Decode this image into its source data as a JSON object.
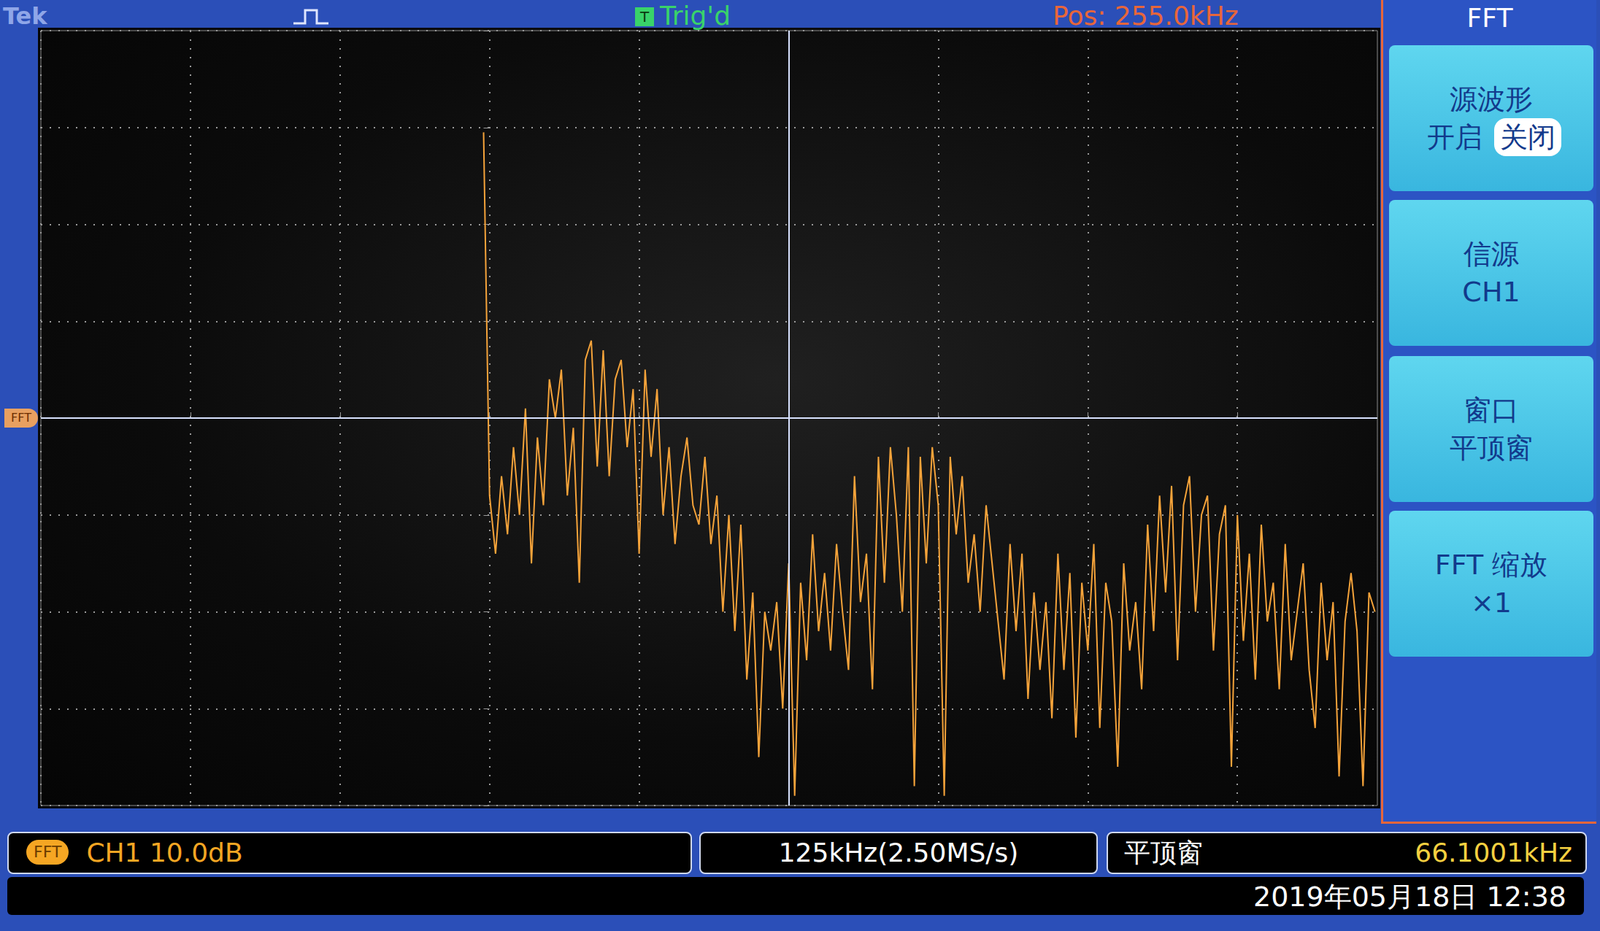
{
  "chart_data": {
    "type": "line",
    "x": [
      0,
      5,
      10,
      15,
      20,
      25,
      30,
      35,
      40,
      45,
      50,
      55,
      60,
      65,
      70,
      75,
      80,
      85,
      90,
      95,
      100,
      105,
      110,
      115,
      120,
      125,
      130,
      135,
      140,
      145,
      150,
      155,
      160,
      165,
      170,
      175,
      180,
      185,
      190,
      195,
      200,
      205,
      210,
      215,
      220,
      225,
      230,
      235,
      240,
      245,
      250,
      255,
      260,
      265,
      270,
      275,
      280,
      285,
      290,
      295,
      300,
      305,
      310,
      315,
      320,
      325,
      330,
      335,
      340,
      345,
      350,
      355,
      360,
      365,
      370,
      375,
      380,
      385,
      390,
      395,
      400,
      405,
      410,
      415,
      420,
      425,
      430,
      435,
      440,
      445,
      450,
      455,
      460,
      465,
      470,
      475,
      480,
      485,
      490,
      495,
      500,
      505,
      510,
      515,
      520,
      525,
      530,
      535,
      540,
      545,
      550,
      555,
      560,
      565,
      570,
      575,
      580,
      585,
      590,
      595,
      600,
      605,
      610,
      615,
      620,
      625,
      630,
      635,
      640,
      645,
      650,
      655,
      660,
      665,
      670,
      675,
      680,
      685,
      690,
      695,
      700,
      705,
      710,
      715,
      720,
      725,
      730,
      735,
      740,
      745
    ],
    "values": [
      29.5,
      -8,
      -14,
      -6,
      -12,
      -3,
      -10,
      1,
      -15,
      -2,
      -9,
      4,
      0,
      5,
      -8,
      -1,
      -17,
      6,
      8,
      -5,
      7,
      -6,
      4,
      6,
      -3,
      3,
      -14,
      5,
      -4,
      3,
      -10,
      -3,
      -13,
      -6,
      -2,
      -9,
      -11,
      -4,
      -13,
      -8,
      -20,
      -10,
      -22,
      -11,
      -27,
      -18,
      -35,
      -20,
      -24,
      -19,
      -30,
      -15,
      -39,
      -17,
      -25,
      -12,
      -22,
      -16,
      -24,
      -13,
      -20,
      -26,
      -6,
      -19,
      -14,
      -28,
      -4,
      -17,
      -3,
      -10,
      -20,
      -3,
      -38,
      -4,
      -15,
      -3,
      -9,
      -39,
      -4,
      -12,
      -6,
      -17,
      -12,
      -20,
      -9,
      -15,
      -21,
      -27,
      -13,
      -22,
      -14,
      -29,
      -18,
      -26,
      -19,
      -31,
      -14,
      -26,
      -16,
      -33,
      -17,
      -24,
      -13,
      -32,
      -17,
      -21,
      -36,
      -15,
      -24,
      -19,
      -28,
      -11,
      -22,
      -8,
      -18,
      -7,
      -25,
      -9,
      -6,
      -20,
      -10,
      -8,
      -24,
      -12,
      -9,
      -36,
      -10,
      -23,
      -14,
      -27,
      -11,
      -21,
      -17,
      -28,
      -13,
      -25,
      -20,
      -15,
      -26,
      -32,
      -17,
      -25,
      -19,
      -37,
      -21,
      -16,
      -22,
      -38,
      -18,
      -20
    ],
    "color": "#f5a33a",
    "xlim": [
      -370,
      747
    ],
    "xticks": [
      -370,
      -245,
      -120,
      5,
      130,
      255,
      380,
      505,
      630
    ],
    "ylim": [
      -40,
      40
    ],
    "yticks": [
      -40,
      -30,
      -20,
      -10,
      0,
      10,
      20,
      30,
      40
    ],
    "grid": true,
    "tick_labels": false,
    "annotations": [
      {
        "text": "Pos: 255.0kHz",
        "x": 255
      },
      {
        "text": "FFT",
        "y": 0
      }
    ]
  },
  "screen": {
    "brand": "Tek",
    "trigger": {
      "icon": "T",
      "status": "Trig'd"
    },
    "menu": {
      "title": "FFT",
      "buttons": [
        {
          "lines": [
            "源波形"
          ],
          "options": [
            "开启",
            "关闭"
          ],
          "selected": 1
        },
        {
          "lines": [
            "信源",
            "CH1"
          ]
        },
        {
          "lines": [
            "窗口",
            "平顶窗"
          ]
        },
        {
          "lines": [
            "FFT 缩放",
            "×1"
          ]
        }
      ]
    },
    "status_bar": {
      "badge": "FFT",
      "channel": "CH1  10.0dB",
      "timebase": "125kHz(2.50MS/s)",
      "window": "平顶窗",
      "frequency": "66.1001kHz"
    },
    "date": "2019年05月18日 12:38"
  }
}
